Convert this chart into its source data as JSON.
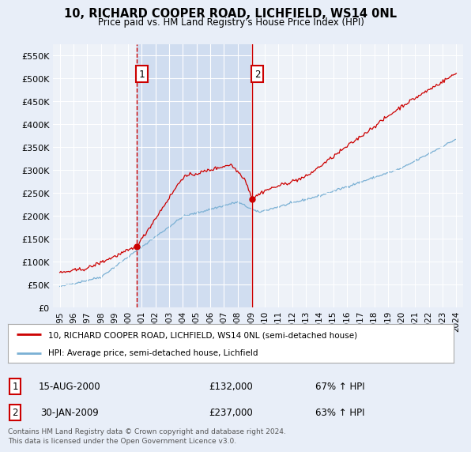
{
  "title": "10, RICHARD COOPER ROAD, LICHFIELD, WS14 0NL",
  "subtitle": "Price paid vs. HM Land Registry's House Price Index (HPI)",
  "legend_line1": "10, RICHARD COOPER ROAD, LICHFIELD, WS14 0NL (semi-detached house)",
  "legend_line2": "HPI: Average price, semi-detached house, Lichfield",
  "footnote": "Contains HM Land Registry data © Crown copyright and database right 2024.\nThis data is licensed under the Open Government Licence v3.0.",
  "transaction1": {
    "label": "1",
    "date": "15-AUG-2000",
    "price": "£132,000",
    "pct": "67% ↑ HPI"
  },
  "transaction2": {
    "label": "2",
    "date": "30-JAN-2009",
    "price": "£237,000",
    "pct": "63% ↑ HPI"
  },
  "vline1_x": 2000.62,
  "vline2_x": 2009.08,
  "dot1_x": 2000.62,
  "dot1_y": 132000,
  "dot2_x": 2009.08,
  "dot2_y": 237000,
  "ylim": [
    0,
    575000
  ],
  "xlim": [
    1994.5,
    2024.5
  ],
  "yticks": [
    0,
    50000,
    100000,
    150000,
    200000,
    250000,
    300000,
    350000,
    400000,
    450000,
    500000,
    550000
  ],
  "ytick_labels": [
    "£0",
    "£50K",
    "£100K",
    "£150K",
    "£200K",
    "£250K",
    "£300K",
    "£350K",
    "£400K",
    "£450K",
    "£500K",
    "£550K"
  ],
  "xticks": [
    1995,
    1996,
    1997,
    1998,
    1999,
    2000,
    2001,
    2002,
    2003,
    2004,
    2005,
    2006,
    2007,
    2008,
    2009,
    2010,
    2011,
    2012,
    2013,
    2014,
    2015,
    2016,
    2017,
    2018,
    2019,
    2020,
    2021,
    2022,
    2023,
    2024
  ],
  "background_color": "#e8eef8",
  "plot_bg": "#eef2f8",
  "shade_color": "#d0ddf0",
  "red_color": "#cc0000",
  "blue_color": "#7ab0d4",
  "grid_color": "#ffffff",
  "vline_color": "#cc0000",
  "vline1_style": "--",
  "vline2_style": "-"
}
